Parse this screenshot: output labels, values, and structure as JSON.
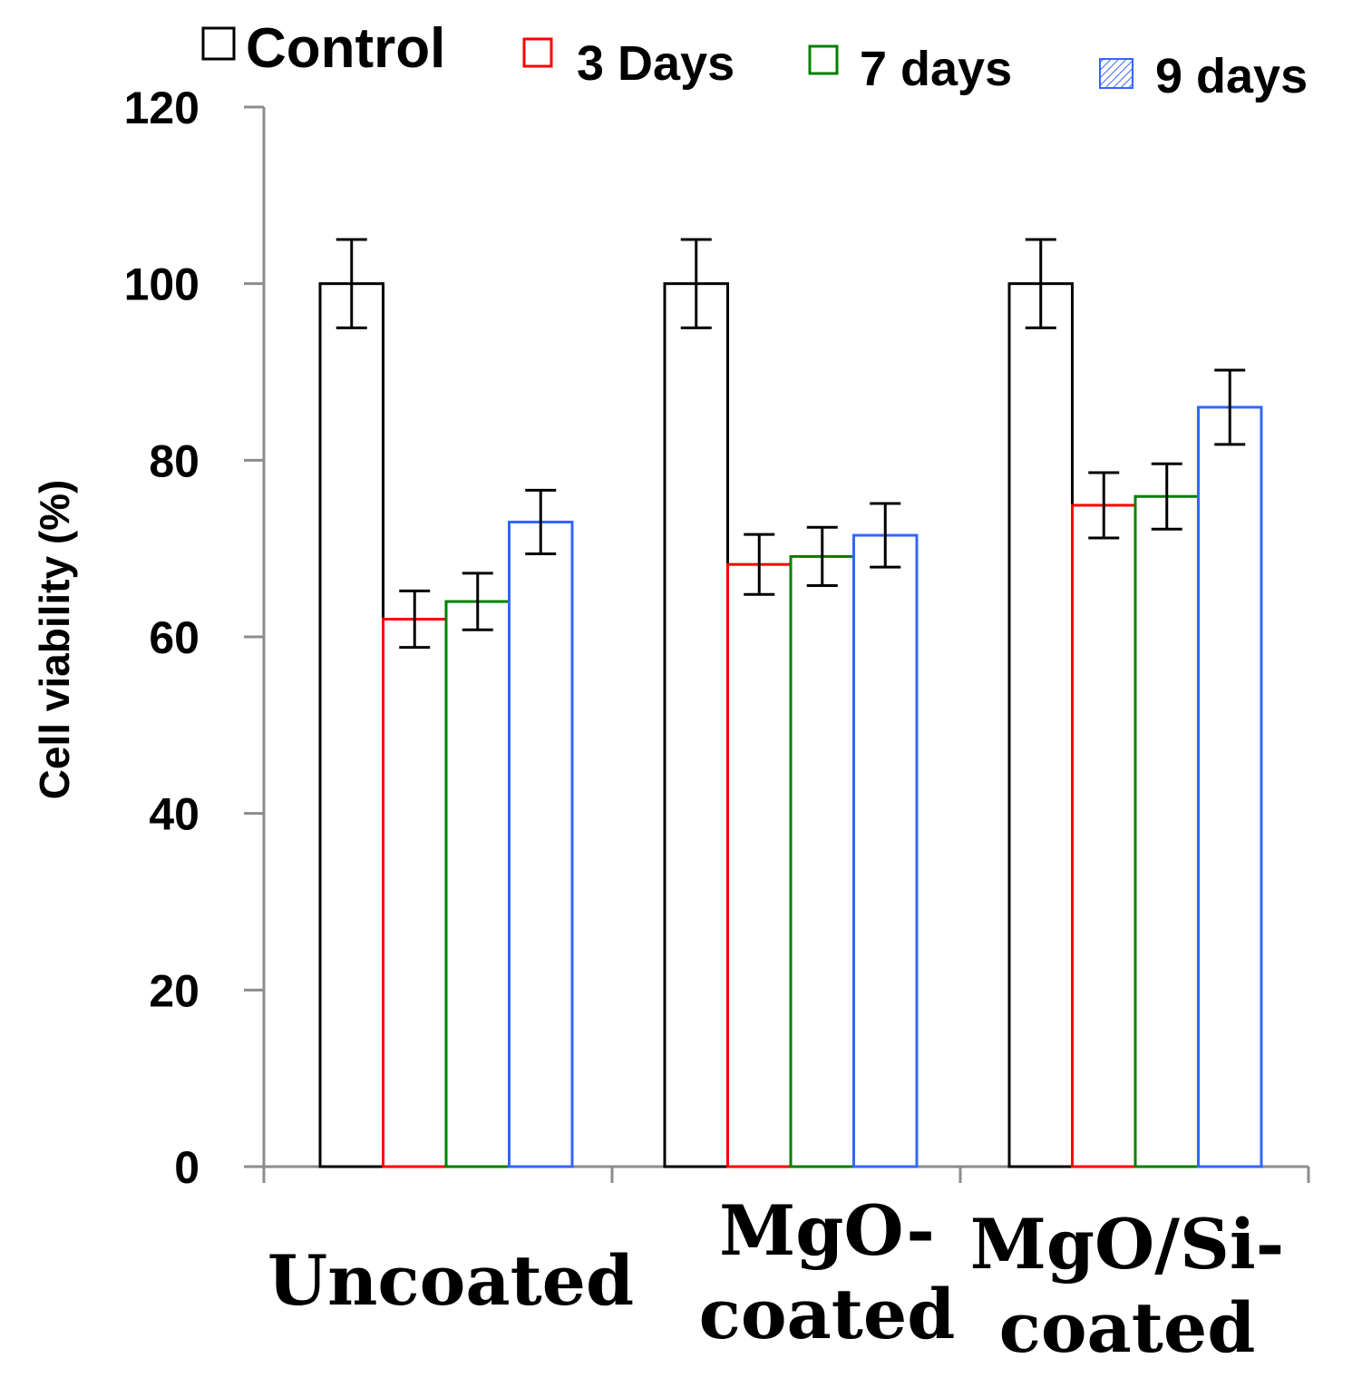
{
  "chart_data": {
    "type": "bar",
    "title": "",
    "xlabel": "",
    "ylabel": "Cell viability (%)",
    "ylim": [
      0,
      120
    ],
    "yticks": [
      "0",
      "20",
      "40",
      "60",
      "80",
      "100",
      "120"
    ],
    "grid": false,
    "legend_position": "top",
    "categories": [
      {
        "lines": [
          "Uncoated"
        ]
      },
      {
        "lines": [
          "MgO-",
          "coated"
        ]
      },
      {
        "lines": [
          "MgO/Si-",
          "coated"
        ]
      }
    ],
    "series": [
      {
        "name": "Control",
        "color": "#000000",
        "values": [
          100,
          100,
          100
        ],
        "errors": [
          5,
          5,
          5
        ]
      },
      {
        "name": "3 Days",
        "color": "#ff0000",
        "values": [
          62,
          68.2,
          74.9
        ],
        "errors": [
          3.2,
          3.4,
          3.7
        ]
      },
      {
        "name": "7 days",
        "color": "#008000",
        "values": [
          64,
          69.1,
          75.9
        ],
        "errors": [
          3.2,
          3.3,
          3.7
        ]
      },
      {
        "name": "9 days",
        "color": "#3366ff",
        "values": [
          73,
          71.5,
          86
        ],
        "errors": [
          3.6,
          3.6,
          4.2
        ]
      }
    ]
  }
}
